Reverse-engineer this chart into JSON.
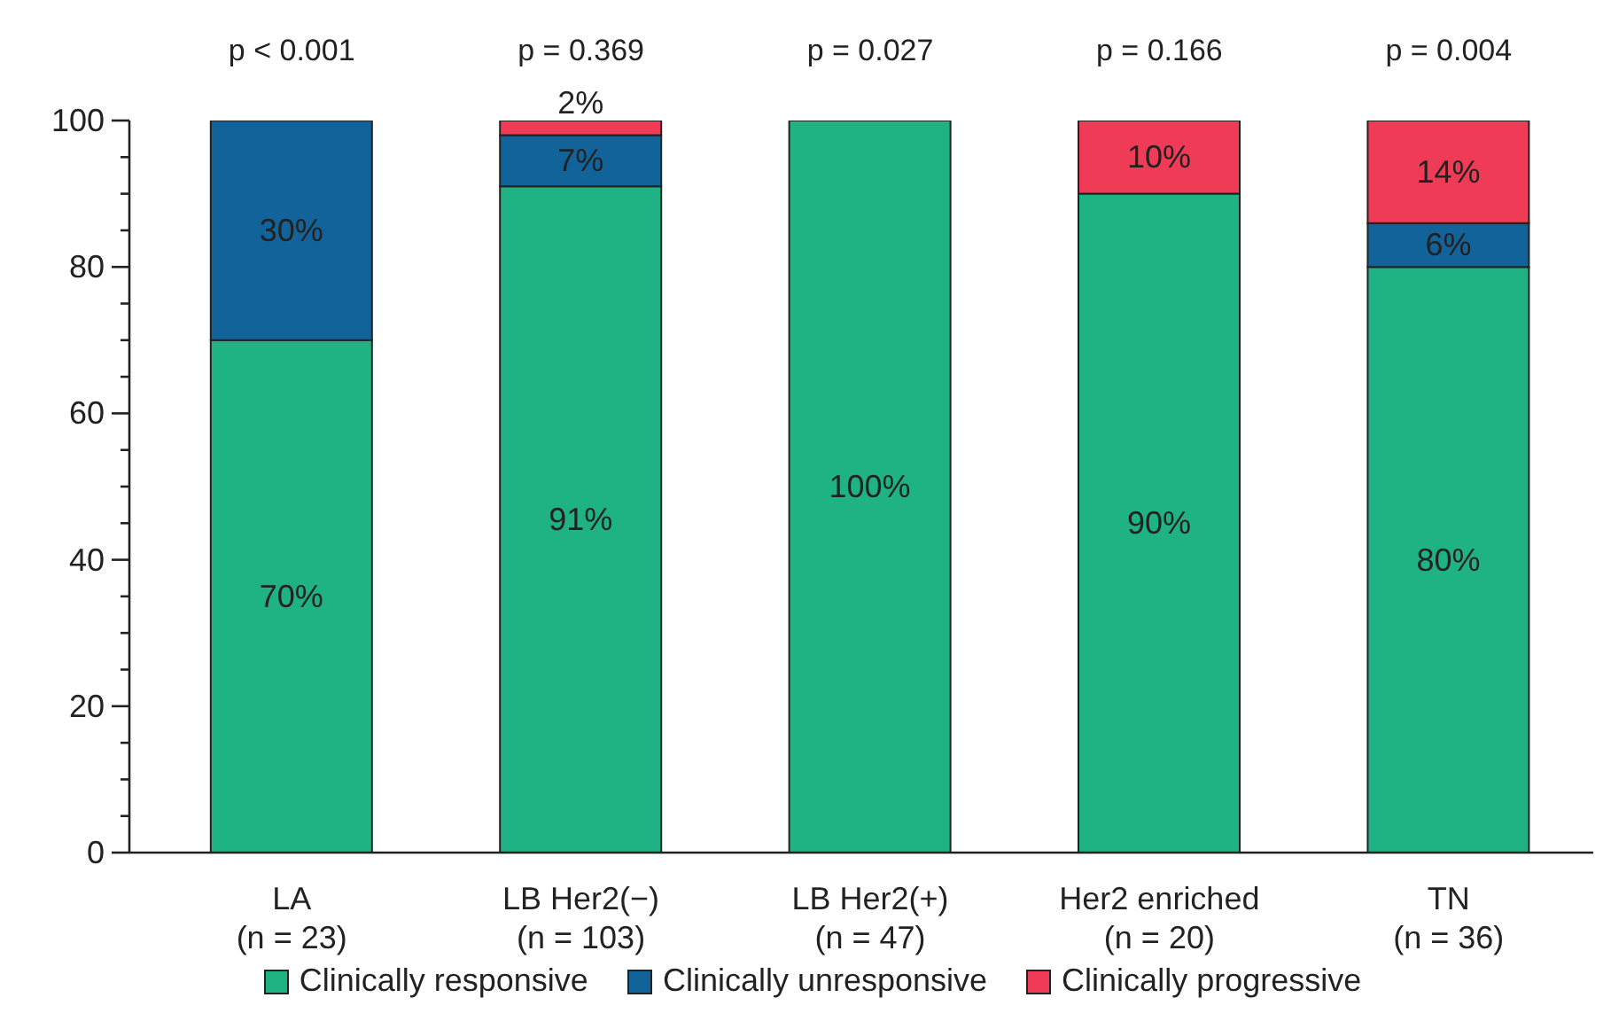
{
  "chart_data": {
    "type": "bar",
    "stacked": true,
    "categories": [
      "LA\n(n = 23)",
      "LB Her2(−)\n(n = 103)",
      "LB Her2(+)\n(n = 47)",
      "Her2 enriched\n(n = 20)",
      "TN\n(n = 36)"
    ],
    "series": [
      {
        "name": "Clinically responsive",
        "color": "#1fb384",
        "values": [
          70,
          91,
          100,
          90,
          80
        ],
        "value_labels": [
          "70%",
          "91%",
          "100%",
          "90%",
          "80%"
        ]
      },
      {
        "name": "Clinically unresponsive",
        "color": "#13639b",
        "values": [
          30,
          7,
          0,
          0,
          6
        ],
        "value_labels": [
          "30%",
          "7%",
          null,
          null,
          "6%"
        ]
      },
      {
        "name": "Clinically progressive",
        "color": "#f03b57",
        "values": [
          0,
          2,
          0,
          10,
          14
        ],
        "value_labels": [
          null,
          "2%",
          null,
          "10%",
          "14%"
        ]
      }
    ],
    "ylim": [
      0,
      100
    ],
    "yticks": [
      0,
      {
        "value": 5,
        "label": null
      },
      {
        "value": 10,
        "label": null
      },
      {
        "value": 15,
        "label": null
      },
      20,
      {
        "value": 25,
        "label": null
      },
      {
        "value": 30,
        "label": null
      },
      {
        "value": 35,
        "label": null
      },
      40,
      {
        "value": 45,
        "label": null
      },
      {
        "value": 50,
        "label": null
      },
      {
        "value": 55,
        "label": null
      },
      60,
      {
        "value": 65,
        "label": null
      },
      {
        "value": 70,
        "label": null
      },
      {
        "value": 75,
        "label": null
      },
      80,
      {
        "value": 85,
        "label": null
      },
      {
        "value": 90,
        "label": null
      },
      {
        "value": 95,
        "label": null
      },
      100
    ],
    "annotations": [
      "p < 0.001",
      "p = 0.369",
      "p = 0.027",
      "p = 0.166",
      "p = 0.004"
    ],
    "grid": false,
    "legend": "bottom"
  }
}
